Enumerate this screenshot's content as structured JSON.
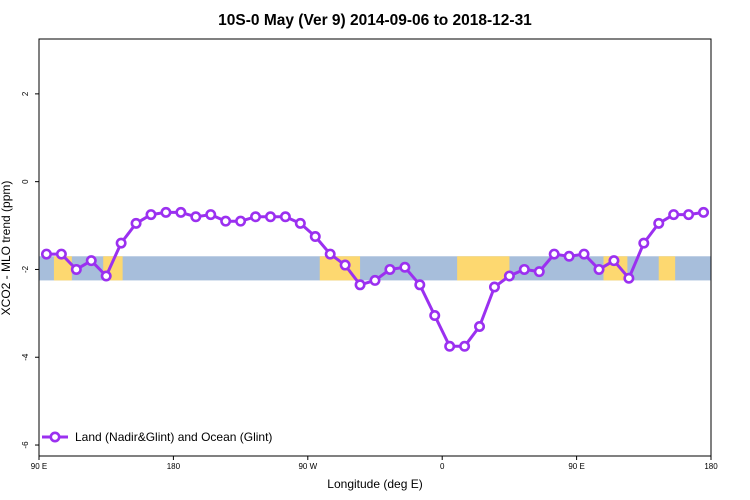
{
  "chart_data": {
    "type": "line",
    "title": "10S-0 May (Ver 9)   2014-09-06 to 2018-12-31",
    "xlabel": "Longitude (deg E)",
    "ylabel": "XCO2 - MLO trend (ppm)",
    "xlim": [
      90,
      540
    ],
    "ylim": [
      -6.25,
      3.25
    ],
    "x_ticks": [
      {
        "value": 90,
        "label": "90 E"
      },
      {
        "value": 180,
        "label": "180"
      },
      {
        "value": 270,
        "label": "90 W"
      },
      {
        "value": 360,
        "label": "0"
      },
      {
        "value": 450,
        "label": "90 E"
      },
      {
        "value": 540,
        "label": "180"
      }
    ],
    "y_ticks": [
      {
        "value": 2,
        "label": "2"
      },
      {
        "value": 0,
        "label": "0"
      },
      {
        "value": -2,
        "label": "-2"
      },
      {
        "value": -4,
        "label": "-4"
      },
      {
        "value": -6,
        "label": "-6"
      }
    ],
    "band": {
      "y_min": -2.25,
      "y_max": -1.7,
      "ocean_color": "#a7bedb",
      "land_color": "#fdd870"
    },
    "land_segments": [
      [
        100,
        112
      ],
      [
        133,
        146
      ],
      [
        278,
        305
      ],
      [
        370,
        405
      ],
      [
        468,
        484
      ],
      [
        505,
        516
      ]
    ],
    "series": [
      {
        "name": "Land (Nadir&Glint) and Ocean (Glint)",
        "color": "#9b30f0",
        "x": [
          95,
          105,
          115,
          125,
          135,
          145,
          155,
          165,
          175,
          185,
          195,
          205,
          215,
          225,
          235,
          245,
          255,
          265,
          275,
          285,
          295,
          305,
          315,
          325,
          335,
          345,
          355,
          365,
          375,
          385,
          395,
          405,
          415,
          425,
          435,
          445,
          455,
          465,
          475,
          485,
          495,
          505,
          515,
          525,
          535
        ],
        "y": [
          -1.65,
          -1.65,
          -2.0,
          -1.8,
          -2.15,
          -1.4,
          -0.95,
          -0.75,
          -0.7,
          -0.7,
          -0.8,
          -0.75,
          -0.9,
          -0.9,
          -0.8,
          -0.8,
          -0.8,
          -0.95,
          -1.25,
          -1.65,
          -1.9,
          -2.35,
          -2.25,
          -2.0,
          -1.95,
          -2.35,
          -3.05,
          -3.75,
          -3.75,
          -3.3,
          -2.4,
          -2.15,
          -2.0,
          -2.05,
          -1.65,
          -1.7,
          -1.65,
          -2.0,
          -1.8,
          -2.2,
          -1.4,
          -0.95,
          -0.75,
          -0.75,
          -0.7
        ]
      }
    ],
    "legend": {
      "position": "bottom-left"
    }
  }
}
